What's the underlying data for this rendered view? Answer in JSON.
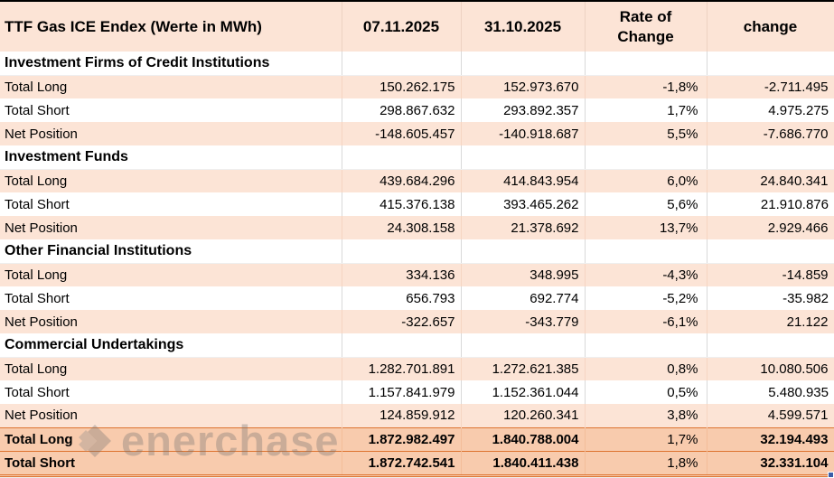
{
  "table": {
    "title": "TTF Gas ICE Endex (Werte in MWh)",
    "columns": {
      "current_date": "07.11.2025",
      "previous_date": "31.10.2025",
      "rate_of_change": "Rate of Change",
      "change": "change"
    },
    "sections": [
      {
        "name": "Investment Firms of Credit Institutions",
        "rows": [
          {
            "label": "Total Long",
            "current": "150.262.175",
            "previous": "152.973.670",
            "rate": "-1,8%",
            "change": "-2.711.495"
          },
          {
            "label": "Total Short",
            "current": "298.867.632",
            "previous": "293.892.357",
            "rate": "1,7%",
            "change": "4.975.275"
          },
          {
            "label": "Net Position",
            "current": "-148.605.457",
            "previous": "-140.918.687",
            "rate": "5,5%",
            "change": "-7.686.770"
          }
        ]
      },
      {
        "name": "Investment Funds",
        "rows": [
          {
            "label": "Total Long",
            "current": "439.684.296",
            "previous": "414.843.954",
            "rate": "6,0%",
            "change": "24.840.341"
          },
          {
            "label": "Total Short",
            "current": "415.376.138",
            "previous": "393.465.262",
            "rate": "5,6%",
            "change": "21.910.876"
          },
          {
            "label": "Net Position",
            "current": "24.308.158",
            "previous": "21.378.692",
            "rate": "13,7%",
            "change": "2.929.466"
          }
        ]
      },
      {
        "name": "Other Financial Institutions",
        "rows": [
          {
            "label": "Total Long",
            "current": "334.136",
            "previous": "348.995",
            "rate": "-4,3%",
            "change": "-14.859"
          },
          {
            "label": "Total Short",
            "current": "656.793",
            "previous": "692.774",
            "rate": "-5,2%",
            "change": "-35.982"
          },
          {
            "label": "Net Position",
            "current": "-322.657",
            "previous": "-343.779",
            "rate": "-6,1%",
            "change": "21.122"
          }
        ]
      },
      {
        "name": "Commercial Undertakings",
        "rows": [
          {
            "label": "Total Long",
            "current": "1.282.701.891",
            "previous": "1.272.621.385",
            "rate": "0,8%",
            "change": "10.080.506"
          },
          {
            "label": "Total Short",
            "current": "1.157.841.979",
            "previous": "1.152.361.044",
            "rate": "0,5%",
            "change": "5.480.935"
          },
          {
            "label": "Net Position",
            "current": "124.859.912",
            "previous": "120.260.341",
            "rate": "3,8%",
            "change": "4.599.571"
          }
        ]
      }
    ],
    "totals": [
      {
        "label": "Total Long",
        "current": "1.872.982.497",
        "previous": "1.840.788.004",
        "rate": "1,7%",
        "change": "32.194.493"
      },
      {
        "label": "Total Short",
        "current": "1.872.742.541",
        "previous": "1.840.411.438",
        "rate": "1,8%",
        "change": "32.331.104"
      }
    ]
  },
  "watermark": {
    "text": "enerchase"
  },
  "colors": {
    "header_fill": "#fce4d6",
    "row_fill_alt": "#fce4d6",
    "total_fill": "#f8cbad",
    "total_border": "#dd7431",
    "gridline": "#d9d9d9",
    "fill_handle": "#3a5ea8"
  }
}
